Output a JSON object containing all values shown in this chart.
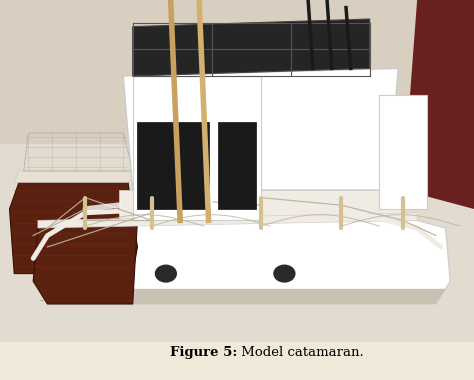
{
  "caption_bold": "Figure 5:",
  "caption_normal": " Model catamaran.",
  "caption_fontsize": 9.5,
  "bg_color": "#f0e8d8",
  "wall_color": "#d8cfc0",
  "table_color": "#e8e0d0",
  "fig_width": 4.74,
  "fig_height": 3.8,
  "dpi": 100,
  "photo_bg": "#e0d8c8"
}
